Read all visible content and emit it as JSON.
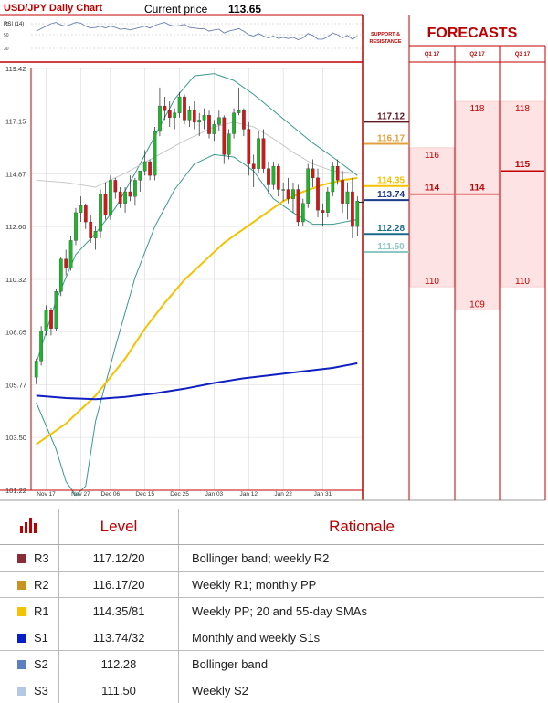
{
  "header": {
    "title": "USD/JPY Daily Chart",
    "price_label": "Current price",
    "price_value": "113.65"
  },
  "rsi": {
    "label": "RSI (14)",
    "ticks": [
      "70",
      "50",
      "30"
    ]
  },
  "chart_data": {
    "type": "candlestick",
    "instrument": "USD/JPY",
    "timeframe": "Daily",
    "ylim": [
      101.22,
      119.42
    ],
    "y_ticks": [
      "119.42",
      "117.15",
      "114.87",
      "112.60",
      "110.32",
      "108.05",
      "105.77",
      "103.50",
      "101.22"
    ],
    "x_ticks": [
      "Nov 17",
      "Nov 27",
      "Dec 06",
      "Dec 15",
      "Dec 25",
      "Jan 03",
      "Jan 12",
      "Jan 22",
      "Jan 31"
    ],
    "current_price": 113.65,
    "candles": [
      [
        106.1,
        106.9,
        105.8,
        106.8
      ],
      [
        106.8,
        108.3,
        106.6,
        108.1
      ],
      [
        108.1,
        109.2,
        107.9,
        109.0
      ],
      [
        109.0,
        109.1,
        107.9,
        108.2
      ],
      [
        108.2,
        109.9,
        108.1,
        109.8
      ],
      [
        109.8,
        111.3,
        109.6,
        111.2
      ],
      [
        111.2,
        111.6,
        110.5,
        110.8
      ],
      [
        110.8,
        112.2,
        110.7,
        112.0
      ],
      [
        112.0,
        113.4,
        111.8,
        113.2
      ],
      [
        113.2,
        113.9,
        112.8,
        113.5
      ],
      [
        113.5,
        113.6,
        112.5,
        112.8
      ],
      [
        112.8,
        113.1,
        111.9,
        112.1
      ],
      [
        112.1,
        112.6,
        111.6,
        112.4
      ],
      [
        112.4,
        114.2,
        112.1,
        114.0
      ],
      [
        114.0,
        114.5,
        112.9,
        113.1
      ],
      [
        113.1,
        114.8,
        112.9,
        114.6
      ],
      [
        114.6,
        114.7,
        113.8,
        114.1
      ],
      [
        114.1,
        114.3,
        113.4,
        113.6
      ],
      [
        113.6,
        114.3,
        113.2,
        114.1
      ],
      [
        114.1,
        114.8,
        113.7,
        113.9
      ],
      [
        113.9,
        114.7,
        113.5,
        114.6
      ],
      [
        114.6,
        115.0,
        114.1,
        115.0
      ],
      [
        115.0,
        115.9,
        114.8,
        115.4
      ],
      [
        115.4,
        115.5,
        114.6,
        114.8
      ],
      [
        114.8,
        116.9,
        114.6,
        116.7
      ],
      [
        116.7,
        118.6,
        116.5,
        117.8
      ],
      [
        117.8,
        118.2,
        117.2,
        117.6
      ],
      [
        117.6,
        118.0,
        116.9,
        117.3
      ],
      [
        117.3,
        117.7,
        116.8,
        117.5
      ],
      [
        117.5,
        118.4,
        117.3,
        118.2
      ],
      [
        118.2,
        118.3,
        117.0,
        117.2
      ],
      [
        117.2,
        117.8,
        116.9,
        117.6
      ],
      [
        117.6,
        118.0,
        116.8,
        117.1
      ],
      [
        117.1,
        117.5,
        116.5,
        117.2
      ],
      [
        117.2,
        117.7,
        116.8,
        117.4
      ],
      [
        117.4,
        117.6,
        116.4,
        116.6
      ],
      [
        116.6,
        117.2,
        116.3,
        117.0
      ],
      [
        117.0,
        117.6,
        116.7,
        117.3
      ],
      [
        117.3,
        117.4,
        115.3,
        115.7
      ],
      [
        115.7,
        116.8,
        115.5,
        116.6
      ],
      [
        116.6,
        117.7,
        116.4,
        117.5
      ],
      [
        117.5,
        118.6,
        117.4,
        117.6
      ],
      [
        117.6,
        117.7,
        116.5,
        116.8
      ],
      [
        116.8,
        117.1,
        114.8,
        115.3
      ],
      [
        115.3,
        115.7,
        114.3,
        115.1
      ],
      [
        115.1,
        116.7,
        114.9,
        116.4
      ],
      [
        116.4,
        116.8,
        114.9,
        115.1
      ],
      [
        115.1,
        115.4,
        114.0,
        114.4
      ],
      [
        114.4,
        115.4,
        114.2,
        115.2
      ],
      [
        115.2,
        115.3,
        113.9,
        114.2
      ],
      [
        114.2,
        114.5,
        113.7,
        114.2
      ],
      [
        114.2,
        114.7,
        113.6,
        113.8
      ],
      [
        113.8,
        114.5,
        113.2,
        114.2
      ],
      [
        114.2,
        114.4,
        112.6,
        112.8
      ],
      [
        112.8,
        113.8,
        112.6,
        113.6
      ],
      [
        113.6,
        115.3,
        113.4,
        115.1
      ],
      [
        115.1,
        115.5,
        114.3,
        114.7
      ],
      [
        114.7,
        115.1,
        113.0,
        113.3
      ],
      [
        113.3,
        113.6,
        112.6,
        113.2
      ],
      [
        113.2,
        114.3,
        113.0,
        114.1
      ],
      [
        114.1,
        115.4,
        113.9,
        115.2
      ],
      [
        115.2,
        115.5,
        114.4,
        114.6
      ],
      [
        114.6,
        115.0,
        113.2,
        113.6
      ],
      [
        113.6,
        114.5,
        112.9,
        114.1
      ],
      [
        114.1,
        114.7,
        112.1,
        112.6
      ],
      [
        112.6,
        113.9,
        112.2,
        113.7
      ]
    ],
    "sma20": [
      [
        0,
        114.6
      ],
      [
        6,
        114.5
      ],
      [
        12,
        114.3
      ],
      [
        18,
        114.9
      ],
      [
        24,
        115.6
      ],
      [
        30,
        116.3
      ],
      [
        36,
        116.9
      ],
      [
        40,
        117.1
      ],
      [
        44,
        116.9
      ],
      [
        48,
        116.4
      ],
      [
        52,
        115.8
      ],
      [
        56,
        115.3
      ],
      [
        60,
        115.0
      ],
      [
        65,
        114.9
      ]
    ],
    "sma55": [
      [
        0,
        103.2
      ],
      [
        6,
        104.1
      ],
      [
        12,
        105.3
      ],
      [
        18,
        106.9
      ],
      [
        22,
        108.2
      ],
      [
        26,
        109.3
      ],
      [
        30,
        110.3
      ],
      [
        34,
        111.1
      ],
      [
        38,
        111.9
      ],
      [
        42,
        112.5
      ],
      [
        46,
        113.1
      ],
      [
        50,
        113.7
      ],
      [
        54,
        114.1
      ],
      [
        58,
        114.4
      ],
      [
        62,
        114.6
      ],
      [
        65,
        114.7
      ]
    ],
    "sma200": [
      [
        0,
        105.3
      ],
      [
        6,
        105.2
      ],
      [
        12,
        105.15
      ],
      [
        18,
        105.25
      ],
      [
        24,
        105.4
      ],
      [
        30,
        105.6
      ],
      [
        36,
        105.85
      ],
      [
        42,
        106.05
      ],
      [
        48,
        106.2
      ],
      [
        54,
        106.35
      ],
      [
        60,
        106.5
      ],
      [
        65,
        106.7
      ]
    ],
    "bb_upper": [
      [
        0,
        106.7
      ],
      [
        4,
        109.4
      ],
      [
        8,
        111.4
      ],
      [
        12,
        112.3
      ],
      [
        16,
        113.4
      ],
      [
        20,
        114.9
      ],
      [
        24,
        116.5
      ],
      [
        28,
        118.1
      ],
      [
        32,
        119.1
      ],
      [
        36,
        119.2
      ],
      [
        40,
        118.9
      ],
      [
        44,
        118.3
      ],
      [
        48,
        117.6
      ],
      [
        52,
        116.9
      ],
      [
        56,
        116.2
      ],
      [
        60,
        115.6
      ],
      [
        65,
        114.8
      ]
    ],
    "bb_lower": [
      [
        0,
        105.0
      ],
      [
        4,
        103.0
      ],
      [
        6,
        101.6
      ],
      [
        8,
        101.0
      ],
      [
        10,
        101.4
      ],
      [
        12,
        104.2
      ],
      [
        16,
        107.4
      ],
      [
        20,
        110.4
      ],
      [
        24,
        112.6
      ],
      [
        28,
        114.2
      ],
      [
        32,
        115.3
      ],
      [
        36,
        115.7
      ],
      [
        40,
        115.6
      ],
      [
        44,
        115.0
      ],
      [
        48,
        113.8
      ],
      [
        52,
        113.2
      ],
      [
        56,
        112.7
      ],
      [
        60,
        112.7
      ],
      [
        65,
        112.9
      ]
    ],
    "support_resistance": {
      "title_line1": "SUPPORT &",
      "title_line2": "RESISTANCE",
      "levels": [
        {
          "label": "117.12",
          "value": 117.12,
          "color": "#5a1a22"
        },
        {
          "label": "116.17",
          "value": 116.17,
          "color": "#e0a040"
        },
        {
          "label": "114.35",
          "value": 114.35,
          "color": "#f3c200"
        },
        {
          "label": "113.74",
          "value": 113.74,
          "color": "#1a3a8a"
        },
        {
          "label": "112.28",
          "value": 112.28,
          "color": "#1a6a8a"
        },
        {
          "label": "111.50",
          "value": 111.5,
          "color": "#8ec7c3"
        }
      ]
    },
    "forecasts": {
      "title": "FORECASTS",
      "quarters": [
        {
          "label": "Q1 17",
          "high": 116,
          "mid": 114,
          "low": 110,
          "high_label": "116",
          "mid_label": "114",
          "low_label": "110"
        },
        {
          "label": "Q2 17",
          "high": 118,
          "mid": 114,
          "low": 109,
          "high_label": "118",
          "mid_label": "114",
          "low_label": "109"
        },
        {
          "label": "Q3 17",
          "high": 118,
          "mid": 115,
          "low": 110,
          "high_label": "118",
          "mid_label": "115",
          "low_label": "110"
        }
      ]
    }
  },
  "table": {
    "headers": {
      "level": "Level",
      "rationale": "Rationale"
    },
    "rows": [
      {
        "id": "R3",
        "level": "117.12/20",
        "rationale": "Bollinger band; weekly R2",
        "color": "#8b2b35"
      },
      {
        "id": "R2",
        "level": "116.17/20",
        "rationale": "Weekly R1; monthly PP",
        "color": "#c99324"
      },
      {
        "id": "R1",
        "level": "114.35/81",
        "rationale": "Weekly PP; 20 and 55-day SMAs",
        "color": "#f3c200"
      },
      {
        "id": "S1",
        "level": "113.74/32",
        "rationale": "Monthly and weekly S1s",
        "color": "#0a1ec8"
      },
      {
        "id": "S2",
        "level": "112.28",
        "rationale": "Bollinger band",
        "color": "#5b7fbf"
      },
      {
        "id": "S3",
        "level": "111.50",
        "rationale": "Weekly S2",
        "color": "#b5c8e3"
      }
    ]
  }
}
